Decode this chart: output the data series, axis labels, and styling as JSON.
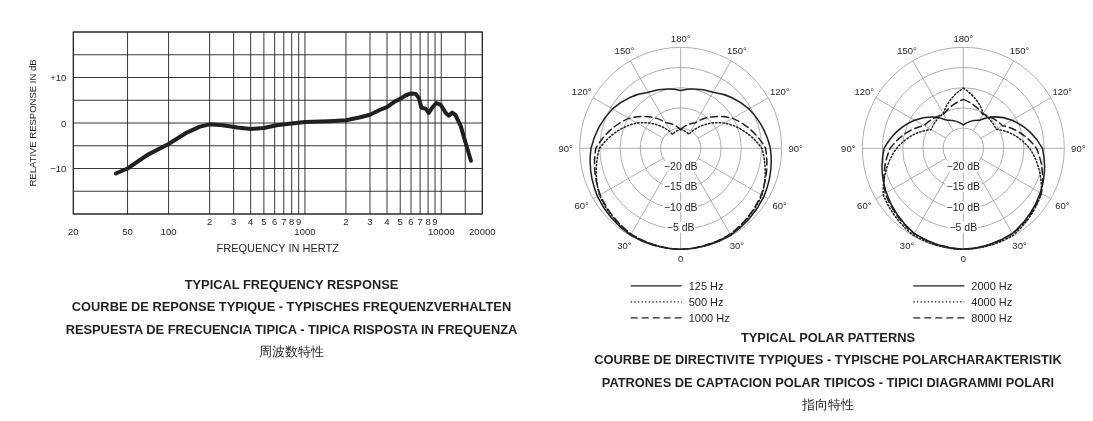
{
  "chart_data": [
    {
      "type": "line",
      "title": "TYPICAL FREQUENCY RESPONSE",
      "annotations": [
        "COURBE DE REPONSE TYPIQUE - TYPISCHES FREQUENZVERHALTEN",
        "RESPUESTA DE FRECUENCIA TIPICA - TIPICA RISPOSTA IN FREQUENZA",
        "周波数特性",
        "2",
        "3",
        "4",
        "5",
        "6",
        "7",
        "8",
        "9",
        "2",
        "3",
        "4",
        "5",
        "6",
        "7",
        "8",
        "9"
      ],
      "xlabel": "FREQUENCY IN HERTZ",
      "ylabel": "RELATIVE RESPONSE IN dB",
      "log": "x",
      "grid": true,
      "xlim": [
        20,
        20000
      ],
      "ylim": [
        -20,
        20
      ],
      "xticks": [
        20,
        50,
        100,
        {
          "value": 200,
          "label": null
        },
        {
          "value": 300,
          "label": null
        },
        {
          "value": 400,
          "label": null
        },
        {
          "value": 500,
          "label": null
        },
        {
          "value": 600,
          "label": null
        },
        {
          "value": 700,
          "label": null
        },
        {
          "value": 800,
          "label": null
        },
        {
          "value": 900,
          "label": null
        },
        1000,
        {
          "value": 2000,
          "label": null
        },
        {
          "value": 3000,
          "label": null
        },
        {
          "value": 4000,
          "label": null
        },
        {
          "value": 5000,
          "label": null
        },
        {
          "value": 6000,
          "label": null
        },
        {
          "value": 7000,
          "label": null
        },
        {
          "value": 8000,
          "label": null
        },
        {
          "value": 9000,
          "label": null
        },
        10000,
        {
          "value": 15000,
          "label": null
        },
        20000
      ],
      "yticks": [
        {
          "value": -20,
          "label": null
        },
        {
          "value": -15,
          "label": null
        },
        {
          "value": -10,
          "label": "−10"
        },
        {
          "value": -5,
          "label": null
        },
        0,
        {
          "value": 5,
          "label": null
        },
        {
          "value": 10,
          "label": "+10"
        },
        {
          "value": 15,
          "label": null
        },
        {
          "value": 20,
          "label": null
        }
      ],
      "color": "#231f20",
      "x": [
        41,
        50,
        70,
        100,
        136,
        170,
        200,
        250,
        320,
        400,
        500,
        620,
        800,
        1000,
        1500,
        2000,
        2500,
        3000,
        3500,
        4000,
        4500,
        5000,
        5500,
        6000,
        6500,
        6850,
        7150,
        7700,
        8100,
        8600,
        9200,
        9900,
        10800,
        11400,
        12000,
        12700,
        13900,
        15100,
        16500
      ],
      "values": [
        -11.1,
        -10.0,
        -7.0,
        -4.6,
        -2.1,
        -0.8,
        -0.3,
        -0.5,
        -1.0,
        -1.3,
        -1.1,
        -0.5,
        -0.1,
        0.2,
        0.4,
        0.6,
        1.2,
        1.8,
        2.8,
        3.5,
        4.6,
        5.3,
        6.1,
        6.5,
        6.4,
        5.5,
        3.4,
        3.1,
        2.2,
        3.4,
        4.4,
        4.0,
        2.2,
        1.6,
        2.3,
        1.8,
        -0.7,
        -4.4,
        -8.3
      ]
    },
    {
      "type": "radar",
      "title": "TYPICAL POLAR PATTERNS",
      "annotations": [
        "COURBE DE DIRECTIVITE TYPIQUES - TYPISCHE POLARCHARAKTERISTIK",
        "PATRONES DE CAPTACION POLAR TIPICOS - TIPICI DIAGRAMMI POLARI",
        "指向特性"
      ],
      "categories": [
        "180°",
        "150°",
        "120°",
        "90°",
        "60°",
        "30°",
        "0",
        "30°",
        "60°",
        "90°",
        "120°",
        "150°"
      ],
      "ylim": [
        -25,
        0
      ],
      "yticks": [
        {
          "value": -20,
          "label": "−20 dB"
        },
        {
          "value": -15,
          "label": "−15 dB"
        },
        {
          "value": -10,
          "label": "−10 dB"
        },
        {
          "value": -5,
          "label": "−5 dB"
        }
      ],
      "grid": true,
      "legend": "bottom",
      "series": [
        {
          "name": "125 Hz",
          "color": "#231f20",
          "line_style": "solid",
          "values": [
            -10.7,
            -9.0,
            -5.5,
            -2.8,
            -1.2,
            -0.2,
            0,
            -0.2,
            -1.2,
            -2.8,
            -5.5,
            -9.0
          ]
        },
        {
          "name": "500 Hz",
          "color": "#231f20",
          "line_style": "dotted",
          "values": [
            -20.3,
            -21,
            -12.5,
            -4.9,
            -1.8,
            -0.4,
            0,
            -0.4,
            -1.8,
            -4.9,
            -12.5,
            -21
          ]
        },
        {
          "name": "1000 Hz",
          "color": "#231f20",
          "line_style": "dashed",
          "values": [
            -20.4,
            -17.7,
            -10.2,
            -4,
            -2,
            -0.5,
            0,
            -0.5,
            -2,
            -4,
            -10.2,
            -17.7
          ]
        }
      ]
    },
    {
      "type": "radar",
      "categories": [
        "180°",
        "150°",
        "120°",
        "90°",
        "60°",
        "30°",
        "0",
        "30°",
        "60°",
        "90°",
        "120°",
        "150°"
      ],
      "ylim": [
        -25,
        0
      ],
      "yticks": [
        {
          "value": -20,
          "label": "−20 dB"
        },
        {
          "value": -15,
          "label": "−15 dB"
        },
        {
          "value": -10,
          "label": "−10 dB"
        },
        {
          "value": -5,
          "label": "−5 dB"
        }
      ],
      "grid": true,
      "legend": "bottom",
      "series": [
        {
          "name": "2000 Hz",
          "color": "#231f20",
          "line_style": "solid",
          "values": [
            -19.2,
            -17.0,
            -11.1,
            -5.4,
            -3.0,
            -0.7,
            0,
            -0.7,
            -3.0,
            -5.4,
            -11.1,
            -17.0
          ]
        },
        {
          "name": "4000 Hz",
          "color": "#231f20",
          "line_style": "dotted",
          "values": [
            -10.1,
            -15.1,
            -15.6,
            -8.6,
            -2.7,
            -0.2,
            0,
            -0.2,
            -2.1,
            -8.5,
            -15.8,
            -15.1
          ]
        },
        {
          "name": "8000 Hz",
          "color": "#231f20",
          "line_style": "dashed",
          "values": [
            -12.9,
            -15.3,
            -13.8,
            -6.9,
            -2.7,
            -0.6,
            0,
            -0.6,
            -2.7,
            -6.9,
            -13.8,
            -15.3
          ]
        }
      ]
    }
  ]
}
